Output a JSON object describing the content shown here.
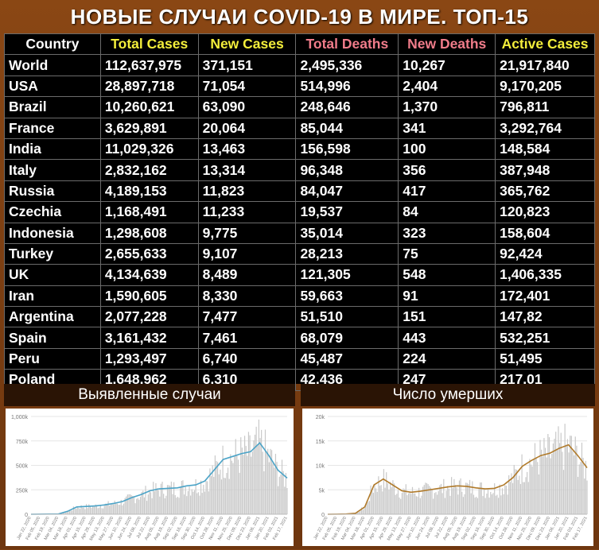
{
  "title": "НОВЫЕ СЛУЧАИ COVID-19 В МИРЕ. ТОП-15",
  "colors": {
    "background": "#7a3d12",
    "header_yellow": "#f3ee3b",
    "header_pink": "#f07c8a",
    "cases_line": "#4aa3c7",
    "deaths_line": "#b07a2a",
    "bars": "#c9c9c9"
  },
  "table": {
    "headers": [
      {
        "label": "Country",
        "color": "white"
      },
      {
        "label": "Total Cases",
        "color": "yellow"
      },
      {
        "label": "New Cases",
        "color": "yellow"
      },
      {
        "label": "Total Deaths",
        "color": "pink"
      },
      {
        "label": "New Deaths",
        "color": "pink"
      },
      {
        "label": "Active Cases",
        "color": "yellow"
      }
    ],
    "rows": [
      [
        "World",
        "112,637,975",
        "371,151",
        "2,495,336",
        "10,267",
        "21,917,840"
      ],
      [
        "USA",
        "28,897,718",
        "71,054",
        "514,996",
        "2,404",
        "9,170,205"
      ],
      [
        "Brazil",
        "10,260,621",
        "63,090",
        "248,646",
        "1,370",
        "796,811"
      ],
      [
        "France",
        "3,629,891",
        "20,064",
        "85,044",
        "341",
        "3,292,764"
      ],
      [
        "India",
        "11,029,326",
        "13,463",
        "156,598",
        "100",
        "148,584"
      ],
      [
        "Italy",
        "2,832,162",
        "13,314",
        "96,348",
        "356",
        "387,948"
      ],
      [
        "Russia",
        "4,189,153",
        "11,823",
        "84,047",
        "417",
        "365,762"
      ],
      [
        "Czechia",
        "1,168,491",
        "11,233",
        "19,537",
        "84",
        "120,823"
      ],
      [
        "Indonesia",
        "1,298,608",
        "9,775",
        "35,014",
        "323",
        "158,604"
      ],
      [
        "Turkey",
        "2,655,633",
        "9,107",
        "28,213",
        "75",
        "92,424"
      ],
      [
        "UK",
        "4,134,639",
        "8,489",
        "121,305",
        "548",
        "1,406,335"
      ],
      [
        "Iran",
        "1,590,605",
        "8,330",
        "59,663",
        "91",
        "172,401"
      ],
      [
        "Argentina",
        "2,077,228",
        "7,477",
        "51,510",
        "151",
        "147,82"
      ],
      [
        "Spain",
        "3,161,432",
        "7,461",
        "68,079",
        "443",
        "532,251"
      ],
      [
        "Peru",
        "1,293,497",
        "6,740",
        "45,487",
        "224",
        "51,495"
      ],
      [
        "Poland",
        "1,648,962",
        "6,310",
        "42,436",
        "247",
        "217,01"
      ]
    ]
  },
  "chart_data": [
    {
      "type": "bar",
      "title": "Выявленные случаи",
      "y_ticks": [
        "0",
        "250k",
        "500k",
        "750k",
        "1,000k"
      ],
      "ylim": [
        0,
        1000000
      ],
      "x_ticks": [
        "Jan 22, 2020",
        "Feb 05, 2020",
        "Feb 19, 2020",
        "Mar 04, 2020",
        "Mar 18, 2020",
        "Apr 01, 2020",
        "Apr 15, 2020",
        "Apr 29, 2020",
        "May 13, 2020",
        "May 27, 2020",
        "Jun 10, 2020",
        "Jun 24, 2020",
        "Jul 08, 2020",
        "Jul 22, 2020",
        "Aug 05, 2020",
        "Aug 19, 2020",
        "Sep 02, 2020",
        "Sep 16, 2020",
        "Sep 30, 2020",
        "Oct 14, 2020",
        "Oct 28, 2020",
        "Nov 11, 2020",
        "Nov 25, 2020",
        "Dec 09, 2020",
        "Dec 23, 2020",
        "Jan 06, 2021",
        "Jan 20, 2021",
        "Feb 03, 2021",
        "Feb 17, 2021"
      ],
      "series_avg": [
        0,
        1000,
        2000,
        3000,
        30000,
        75000,
        80000,
        85000,
        95000,
        110000,
        130000,
        170000,
        200000,
        240000,
        260000,
        265000,
        270000,
        290000,
        300000,
        340000,
        450000,
        560000,
        590000,
        620000,
        640000,
        730000,
        600000,
        450000,
        370000
      ]
    },
    {
      "type": "bar",
      "title": "Число умерших",
      "y_ticks": [
        "0",
        "5k",
        "10k",
        "15k",
        "20k"
      ],
      "ylim": [
        0,
        20000
      ],
      "x_ticks": [
        "Jan 22, 2020",
        "Feb 05, 2020",
        "Feb 19, 2020",
        "Mar 04, 2020",
        "Mar 18, 2020",
        "Apr 01, 2020",
        "Apr 15, 2020",
        "Apr 29, 2020",
        "May 13, 2020",
        "May 27, 2020",
        "Jun 10, 2020",
        "Jun 24, 2020",
        "Jul 08, 2020",
        "Jul 22, 2020",
        "Aug 05, 2020",
        "Aug 19, 2020",
        "Sep 02, 2020",
        "Sep 16, 2020",
        "Sep 30, 2020",
        "Oct 14, 2020",
        "Oct 28, 2020",
        "Nov 11, 2020",
        "Nov 25, 2020",
        "Dec 09, 2020",
        "Dec 23, 2020",
        "Jan 06, 2021",
        "Jan 20, 2021",
        "Feb 03, 2021",
        "Feb 17, 2021"
      ],
      "series_avg": [
        0,
        20,
        50,
        200,
        1500,
        6000,
        7200,
        6000,
        4800,
        4500,
        4700,
        5000,
        5300,
        5600,
        5800,
        5700,
        5400,
        5200,
        5300,
        6000,
        7500,
        9800,
        11000,
        12000,
        12500,
        13500,
        14200,
        12000,
        9500
      ]
    }
  ]
}
